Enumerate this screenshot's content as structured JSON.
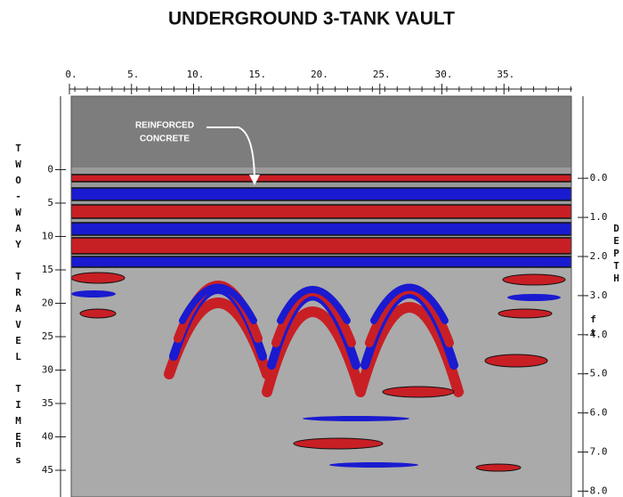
{
  "chart_data": {
    "type": "radargram",
    "title": "UNDERGROUND 3-TANK VAULT",
    "xlim": [
      0,
      40.5
    ],
    "xticks": [
      {
        "value": 0,
        "label": "0."
      },
      {
        "value": 5,
        "label": "5."
      },
      {
        "value": 10,
        "label": "10."
      },
      {
        "value": 15,
        "label": "15."
      },
      {
        "value": 20,
        "label": "20."
      },
      {
        "value": 25,
        "label": "25."
      },
      {
        "value": 30,
        "label": "30."
      },
      {
        "value": 35,
        "label": "35."
      }
    ],
    "ylim": [
      -11,
      49
    ],
    "yticks": [
      0,
      5,
      10,
      15,
      20,
      25,
      30,
      35,
      40,
      45
    ],
    "ylabel": "TWO-WAY TRAVEL TIME",
    "yunit": "ns",
    "y2lim": [
      2.1,
      -8.15
    ],
    "y2ticks": [
      {
        "value": 0,
        "label": "-0.0"
      },
      {
        "value": -1,
        "label": "-1.0"
      },
      {
        "value": -2,
        "label": "-2.0"
      },
      {
        "value": -3,
        "label": "-3.0"
      },
      {
        "value": -4,
        "label": "-4.0"
      },
      {
        "value": -5,
        "label": "-5.0"
      },
      {
        "value": -6,
        "label": "-6.0"
      },
      {
        "value": -7,
        "label": "-7.0"
      },
      {
        "value": -8,
        "label": "-8.0"
      }
    ],
    "y2label": "DEPTH",
    "y2unit": "ft",
    "annotation": [
      "REINFORCED",
      "CONCRETE"
    ]
  }
}
